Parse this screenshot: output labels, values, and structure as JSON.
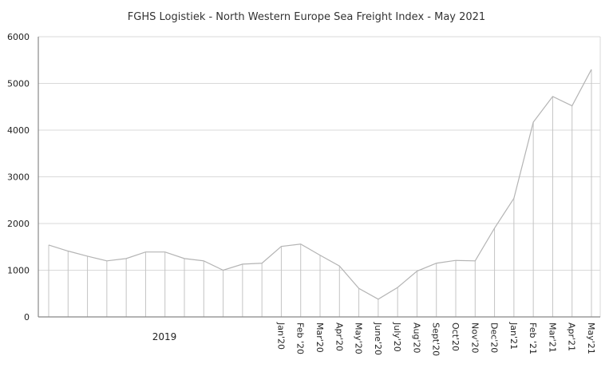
{
  "chart_data": {
    "type": "line",
    "title": "FGHS Logistiek - North Western Europe Sea Freight Index - May 2021",
    "xlabel": "",
    "ylabel": "",
    "ylim": [
      0,
      6000
    ],
    "yticks": [
      0,
      1000,
      2000,
      3000,
      4000,
      5000,
      6000
    ],
    "grid": true,
    "group_label": "2019",
    "categories": [
      "",
      "",
      "",
      "",
      "",
      "",
      "",
      "",
      "",
      "",
      "",
      "",
      "Jan'20",
      "Feb '20",
      "Mar'20",
      "Apr'20",
      "May'20",
      "June'20",
      "July'20",
      "Aug'20",
      "Sept'20",
      "Oct'20",
      "Nov'20",
      "Dec'20",
      "Jan'21",
      "Feb '21",
      "Mar'21",
      "Apr'21",
      "May'21"
    ],
    "series": [
      {
        "name": "Sea Freight Index",
        "color": "#b4b4b4",
        "values": [
          1540,
          1410,
          1300,
          1200,
          1250,
          1390,
          1390,
          1250,
          1200,
          1000,
          1130,
          1150,
          1510,
          1560,
          1320,
          1090,
          610,
          380,
          630,
          980,
          1150,
          1210,
          1200,
          1900,
          2540,
          4170,
          4720,
          4520,
          5300
        ]
      }
    ]
  }
}
